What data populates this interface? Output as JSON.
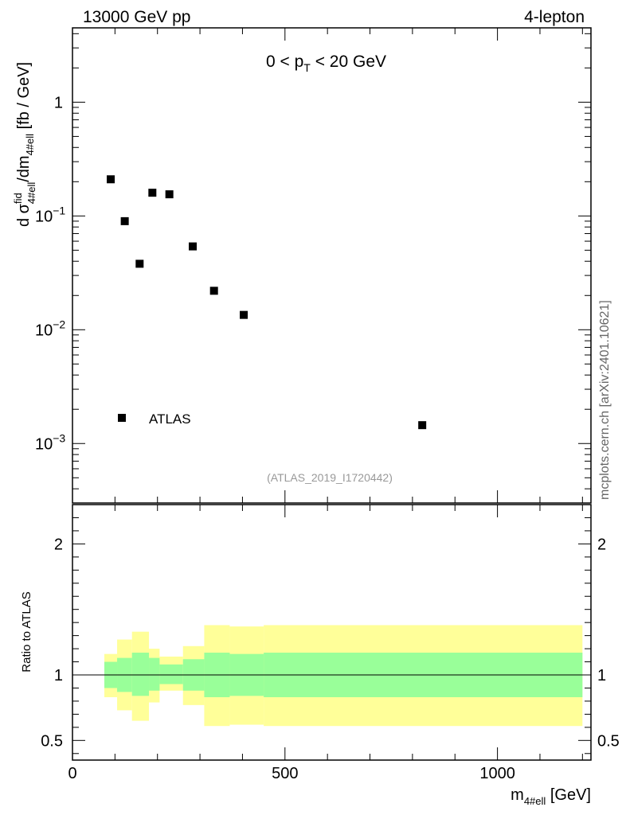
{
  "header": {
    "left": "13000 GeV pp",
    "right": "4-lepton"
  },
  "side_label": "mcplots.cern.ch [arXiv:2401.10621]",
  "chart_data": [
    {
      "type": "scatter",
      "panel": "main",
      "annotation_base": "0 < p",
      "annotation_sub": "T",
      "annotation_rest": " < 20 GeV",
      "analysis_tag": "(ATLAS_2019_I1720442)",
      "ylabel_parts": [
        "d σ",
        "fid",
        "4#ell",
        "/dm",
        "4#ell",
        " [fb / GeV]"
      ],
      "yscale": "log",
      "xlim": [
        0,
        1220
      ],
      "ylim": [
        0.0003,
        4.5
      ],
      "y_tick_labels": [
        {
          "value": 1,
          "base": "1",
          "exp": ""
        },
        {
          "value": 0.1,
          "base": "10",
          "exp": "−1"
        },
        {
          "value": 0.01,
          "base": "10",
          "exp": "−2"
        },
        {
          "value": 0.001,
          "base": "10",
          "exp": "−3"
        }
      ],
      "legend": {
        "entries": [
          "ATLAS"
        ],
        "placement": "bottom-left"
      },
      "series": [
        {
          "name": "ATLAS",
          "x": [
            90,
            123,
            158,
            188,
            228,
            283,
            333,
            403,
            823
          ],
          "y": [
            0.21,
            0.09,
            0.038,
            0.16,
            0.155,
            0.054,
            0.022,
            0.0135,
            0.00145
          ]
        }
      ]
    },
    {
      "type": "area",
      "panel": "ratio",
      "ylabel": "Ratio to ATLAS",
      "xlabel_base": "m",
      "xlabel_sub": "4#ell",
      "xlabel_rest": " [GeV]",
      "xlim": [
        0,
        1220
      ],
      "ylim": [
        0.35,
        2.3
      ],
      "x_ticks": [
        0,
        500,
        1000
      ],
      "y_ticks": [
        0.5,
        1,
        2
      ],
      "reference_line": 1,
      "bins": [
        {
          "x0": 75,
          "x1": 105,
          "inner": [
            0.9,
            1.1
          ],
          "outer": [
            0.83,
            1.16
          ]
        },
        {
          "x0": 105,
          "x1": 140,
          "inner": [
            0.87,
            1.13
          ],
          "outer": [
            0.73,
            1.27
          ]
        },
        {
          "x0": 140,
          "x1": 180,
          "inner": [
            0.84,
            1.17
          ],
          "outer": [
            0.65,
            1.33
          ]
        },
        {
          "x0": 180,
          "x1": 205,
          "inner": [
            0.88,
            1.13
          ],
          "outer": [
            0.79,
            1.2
          ]
        },
        {
          "x0": 205,
          "x1": 260,
          "inner": [
            0.93,
            1.08
          ],
          "outer": [
            0.88,
            1.14
          ]
        },
        {
          "x0": 260,
          "x1": 310,
          "inner": [
            0.88,
            1.12
          ],
          "outer": [
            0.77,
            1.22
          ]
        },
        {
          "x0": 310,
          "x1": 370,
          "inner": [
            0.83,
            1.17
          ],
          "outer": [
            0.61,
            1.38
          ]
        },
        {
          "x0": 370,
          "x1": 450,
          "inner": [
            0.84,
            1.16
          ],
          "outer": [
            0.62,
            1.37
          ]
        },
        {
          "x0": 450,
          "x1": 1200,
          "inner": [
            0.83,
            1.17
          ],
          "outer": [
            0.61,
            1.38
          ]
        }
      ],
      "colors": {
        "inner": "#99ff99",
        "outer": "#ffff99",
        "line": "#000000"
      }
    }
  ]
}
